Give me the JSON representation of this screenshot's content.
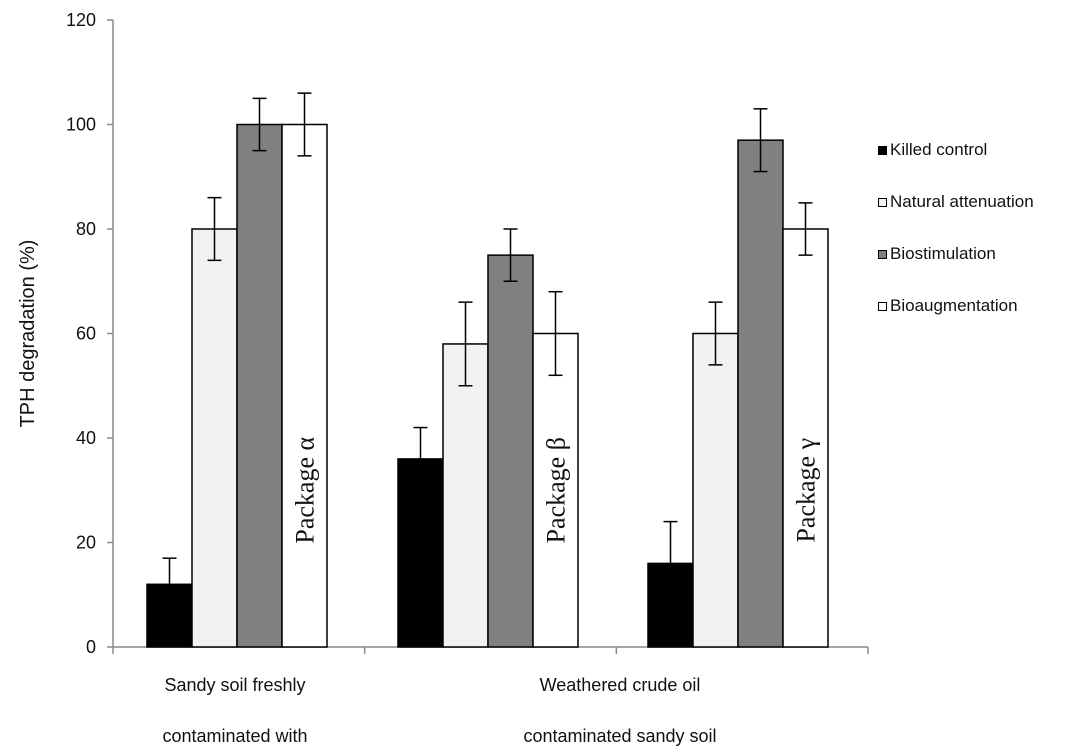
{
  "chart_data": {
    "type": "bar",
    "ylabel": "TPH degradation (%)",
    "xlabel": "",
    "ylim": [
      0,
      120
    ],
    "yticks": [
      0,
      20,
      40,
      60,
      80,
      100,
      120
    ],
    "grid": false,
    "legend_position": "right",
    "groups": [
      {
        "label_lines": [
          "Sandy soil freshly",
          "contaminated with"
        ],
        "package": "Package α"
      },
      {
        "label_lines": [
          "Weathered crude oil",
          "contaminated sandy soil"
        ],
        "package": "Package β"
      },
      {
        "label_lines": [],
        "package": "Package γ"
      }
    ],
    "series": [
      {
        "name": "Killed control",
        "color": "#000000",
        "values": [
          12,
          36,
          16
        ],
        "errors": [
          5,
          6,
          8
        ]
      },
      {
        "name": "Natural attenuation",
        "color": "#f2f2f2",
        "values": [
          80,
          58,
          60
        ],
        "errors": [
          6,
          8,
          6
        ]
      },
      {
        "name": "Biostimulation",
        "color": "#808080",
        "values": [
          100,
          75,
          97
        ],
        "errors": [
          5,
          5,
          6
        ]
      },
      {
        "name": "Bioaugmentation",
        "color": "#ffffff",
        "values": [
          100,
          60,
          80
        ],
        "errors": [
          6,
          8,
          5
        ]
      }
    ]
  }
}
